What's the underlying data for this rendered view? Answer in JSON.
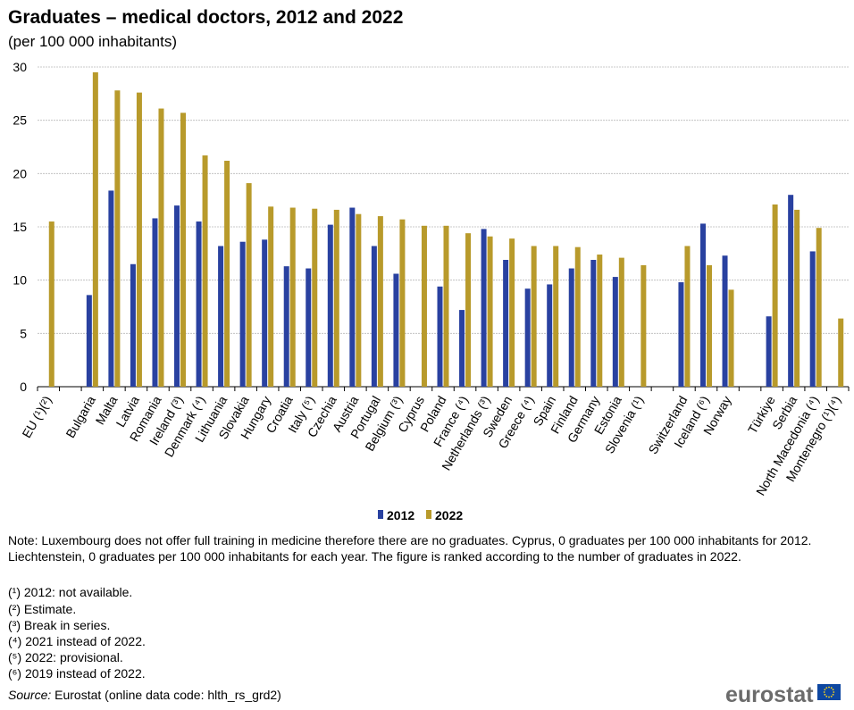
{
  "chart_data": {
    "type": "bar",
    "title": "Graduates – medical doctors, 2012 and 2022",
    "subtitle": "(per 100 000 inhabitants)",
    "ylim": [
      0,
      30
    ],
    "yticks": [
      0,
      5,
      10,
      15,
      20,
      25,
      30
    ],
    "grid": true,
    "legend_position": "bottom",
    "categories": [
      "EU (¹)(²)",
      "",
      "Bulgaria",
      "Malta",
      "Latvia",
      "Romania",
      "Ireland (³)",
      "Denmark (⁴)",
      "Lithuania",
      "Slovakia",
      "Hungary",
      "Croatia",
      "Italy (⁵)",
      "Czechia",
      "Austria",
      "Portugal",
      "Belgium (³)",
      "Cyprus",
      "Poland",
      "France (⁴)",
      "Netherlands (³)",
      "Sweden",
      "Greece (⁴)",
      "Spain",
      "Finland",
      "Germany",
      "Estonia",
      "Slovenia (¹)",
      "",
      "Switzerland",
      "Iceland (⁶)",
      "Norway",
      "",
      "Türkiye",
      "Serbia",
      "North Macedonia (⁴)",
      "Montenegro (¹)(⁴)"
    ],
    "series": [
      {
        "name": "2012",
        "color": "#2941a0",
        "values": [
          null,
          null,
          8.6,
          18.4,
          11.5,
          15.8,
          17.0,
          15.5,
          13.2,
          13.6,
          13.8,
          11.3,
          11.1,
          15.2,
          16.8,
          13.2,
          10.6,
          null,
          9.4,
          7.2,
          14.8,
          11.9,
          9.2,
          9.6,
          11.1,
          11.9,
          10.3,
          null,
          null,
          9.8,
          15.3,
          12.3,
          null,
          6.6,
          18.0,
          12.7,
          null
        ]
      },
      {
        "name": "2022",
        "color": "#b89a2b",
        "values": [
          15.5,
          null,
          29.5,
          27.8,
          27.6,
          26.1,
          25.7,
          21.7,
          21.2,
          19.1,
          16.9,
          16.8,
          16.7,
          16.6,
          16.2,
          16.0,
          15.7,
          15.1,
          15.1,
          14.4,
          14.1,
          13.9,
          13.2,
          13.2,
          13.1,
          12.4,
          12.1,
          11.4,
          null,
          13.2,
          11.4,
          9.1,
          null,
          17.1,
          16.6,
          14.9,
          6.4
        ]
      }
    ]
  },
  "note": "Note: Luxembourg does not offer full training in medicine therefore there are no graduates. Cyprus, 0 graduates per 100 000 inhabitants for 2012. Liechtenstein, 0 graduates per 100 000 inhabitants for each year. The figure is ranked according to the number of graduates in 2022.",
  "footnotes": [
    "(¹) 2012: not available.",
    "(²) Estimate.",
    "(³) Break in series.",
    "(⁴) 2021 instead of 2022.",
    "(⁵) 2022: provisional.",
    "(⁶) 2019 instead of 2022."
  ],
  "source_label": "Source:",
  "source_text": " Eurostat (online data code: hlth_rs_grd2)",
  "logo_text": "eurostat"
}
